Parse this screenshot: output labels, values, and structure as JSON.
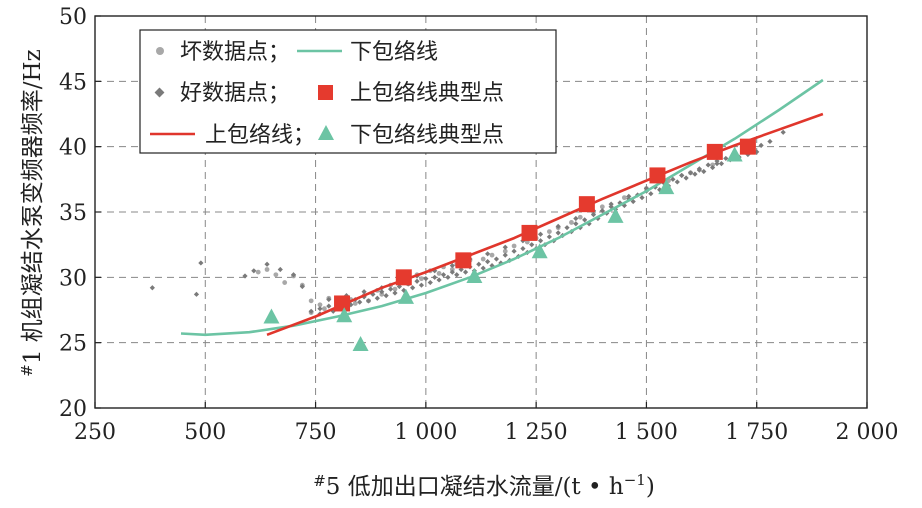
{
  "chart_data": {
    "type": "scatter",
    "xlabel_prefix": "#",
    "xlabel_main": "5 低加出口凝结水流量/(t • h",
    "xlabel_sup": "−1",
    "xlabel_suffix": ")",
    "ylabel_prefix": "#",
    "ylabel_main": "1 机组凝结水泵变频器频率/Hz",
    "xlim": [
      250,
      2000
    ],
    "ylim": [
      20,
      50
    ],
    "xticks": [
      250,
      500,
      750,
      1000,
      1250,
      1500,
      1750,
      2000
    ],
    "xtick_labels": [
      "250",
      "500",
      "750",
      "1 000",
      "1 250",
      "1 500",
      "1 750",
      "2 000"
    ],
    "yticks": [
      20,
      25,
      30,
      35,
      40,
      45,
      50
    ],
    "ytick_labels": [
      "20",
      "25",
      "30",
      "35",
      "40",
      "45",
      "50"
    ],
    "grid": true,
    "legend_position": "top-left",
    "legend": [
      {
        "label": "坏数据点；",
        "marker": "circle",
        "color": "#a8a8a8"
      },
      {
        "label": "下包络线",
        "marker": "line",
        "color": "#6cc4a4"
      },
      {
        "label": "好数据点；",
        "marker": "diamond",
        "color": "#7a7a7a"
      },
      {
        "label": "上包络线典型点",
        "marker": "square",
        "color": "#e53a2e"
      },
      {
        "label": "上包络线；",
        "marker": "line",
        "color": "#e0362c"
      },
      {
        "label": "下包络线典型点",
        "marker": "triangle",
        "color": "#6cc4a4"
      }
    ],
    "series": [
      {
        "name": "上包络线典型点",
        "color": "#e53a2e",
        "x": [
          810,
          950,
          1085,
          1235,
          1365,
          1525,
          1655,
          1730
        ],
        "y": [
          28.0,
          30.0,
          31.3,
          33.4,
          35.6,
          37.8,
          39.6,
          40.0
        ]
      },
      {
        "name": "下包络线典型点",
        "color": "#6cc4a4",
        "x": [
          650,
          815,
          852,
          955,
          1110,
          1258,
          1430,
          1545,
          1700
        ],
        "y": [
          27.0,
          27.1,
          24.9,
          28.5,
          30.1,
          32.0,
          34.7,
          36.9,
          39.4
        ]
      },
      {
        "name": "上包络线",
        "color": "#e0362c",
        "x": [
          640,
          750,
          900,
          1000,
          1100,
          1200,
          1300,
          1400,
          1500,
          1600,
          1700,
          1800,
          1900
        ],
        "y": [
          25.6,
          27.0,
          29.2,
          30.4,
          31.7,
          33.0,
          34.5,
          36.0,
          37.4,
          38.8,
          40.1,
          41.3,
          42.5
        ]
      },
      {
        "name": "下包络线",
        "color": "#6cc4a4",
        "x": [
          445,
          500,
          600,
          700,
          800,
          900,
          1000,
          1100,
          1200,
          1300,
          1400,
          1500,
          1600,
          1700,
          1800,
          1900
        ],
        "y": [
          25.7,
          25.6,
          25.8,
          26.3,
          27.0,
          27.8,
          28.8,
          30.0,
          31.4,
          33.0,
          34.8,
          36.6,
          38.6,
          40.6,
          42.8,
          45.1
        ]
      }
    ],
    "scatter_bad": {
      "name": "坏数据点",
      "color": "#a8a8a8",
      "x": [
        620,
        640,
        660,
        680,
        700,
        720,
        740,
        760,
        780,
        800,
        830,
        860,
        890,
        920,
        950,
        980,
        1010,
        1040,
        1070,
        1100,
        1150,
        1200,
        1250,
        1300,
        1350,
        1400,
        1450,
        1500,
        1550,
        1600,
        1650,
        1700,
        740,
        770,
        800,
        840,
        870,
        900,
        930,
        960,
        990,
        1030,
        1060,
        1090,
        1130,
        1180,
        1230,
        1280,
        1330,
        1380
      ],
      "y": [
        30.4,
        30.6,
        30.2,
        29.6,
        30.1,
        29.4,
        28.2,
        27.9,
        28.4,
        28.0,
        28.3,
        28.6,
        29.0,
        29.4,
        29.8,
        30.2,
        30.5,
        30.8,
        31.0,
        31.3,
        31.7,
        32.4,
        33.0,
        33.8,
        34.6,
        35.4,
        36.1,
        36.8,
        37.4,
        38.0,
        38.6,
        39.2,
        27.3,
        27.6,
        27.8,
        28.0,
        28.2,
        28.7,
        29.1,
        29.5,
        29.9,
        30.3,
        30.6,
        30.9,
        31.4,
        32.0,
        32.7,
        33.5,
        34.2,
        35.0
      ]
    },
    "scatter_good": {
      "name": "好数据点",
      "color": "#7a7a7a",
      "x": [
        380,
        480,
        490,
        590,
        610,
        640,
        670,
        700,
        720,
        740,
        760,
        780,
        800,
        820,
        840,
        860,
        880,
        900,
        920,
        940,
        960,
        980,
        1000,
        1020,
        1040,
        1060,
        1080,
        1100,
        1120,
        1140,
        1160,
        1180,
        1200,
        1220,
        1240,
        1260,
        1280,
        1300,
        1320,
        1340,
        1360,
        1380,
        1400,
        1420,
        1440,
        1460,
        1480,
        1500,
        1520,
        1540,
        1560,
        1580,
        1600,
        1620,
        1640,
        1660,
        1680,
        1700,
        1720,
        1740,
        1760,
        1780,
        1810,
        760,
        790,
        810,
        830,
        850,
        870,
        890,
        910,
        930,
        950,
        970,
        990,
        1010,
        1030,
        1050,
        1070,
        1090,
        1110,
        1130,
        1150,
        1170,
        1190,
        1210,
        1230,
        1250,
        1270,
        1290,
        1310,
        1330,
        1350,
        1370,
        1390,
        1410,
        1430,
        1450,
        1470,
        1490,
        1510,
        1530,
        1550,
        1570,
        1590,
        1610,
        1630,
        1650,
        1670,
        1690,
        1710,
        1730,
        1750,
        780,
        820,
        860,
        900,
        940,
        980,
        1020,
        1060,
        1100,
        1140,
        1180,
        1220,
        1260,
        1300,
        1340,
        1380,
        1420,
        1460,
        1500,
        1540,
        1580,
        1620,
        1660,
        1700
      ],
      "y": [
        29.2,
        28.7,
        31.1,
        30.1,
        30.5,
        31.0,
        30.6,
        30.2,
        29.3,
        27.4,
        27.6,
        27.8,
        28.0,
        28.1,
        28.3,
        28.5,
        28.7,
        28.9,
        29.1,
        29.3,
        29.5,
        29.7,
        29.9,
        30.0,
        30.2,
        30.4,
        30.6,
        30.8,
        31.0,
        31.2,
        31.4,
        31.7,
        32.0,
        32.2,
        32.5,
        32.8,
        33.1,
        33.4,
        33.8,
        34.1,
        34.4,
        34.8,
        35.1,
        35.4,
        35.7,
        36.0,
        36.3,
        36.6,
        36.9,
        37.2,
        37.5,
        37.8,
        38.0,
        38.3,
        38.6,
        38.9,
        39.1,
        39.3,
        39.6,
        39.8,
        40.1,
        40.4,
        41.1,
        27.2,
        27.4,
        27.7,
        27.9,
        28.1,
        28.2,
        28.4,
        28.6,
        28.8,
        29.0,
        29.2,
        29.4,
        29.6,
        29.8,
        30.0,
        30.2,
        30.4,
        30.5,
        30.7,
        30.9,
        31.1,
        31.3,
        31.6,
        31.9,
        32.2,
        32.5,
        32.8,
        33.2,
        33.5,
        33.8,
        34.1,
        34.5,
        34.9,
        35.2,
        35.5,
        35.8,
        36.1,
        36.4,
        36.7,
        37.0,
        37.3,
        37.6,
        37.9,
        38.1,
        38.4,
        38.7,
        39.0,
        39.2,
        39.4,
        39.6,
        28.3,
        28.6,
        28.9,
        29.2,
        29.6,
        30.1,
        30.5,
        30.9,
        31.4,
        31.8,
        32.3,
        32.8,
        33.3,
        33.9,
        34.5,
        35.1,
        35.6,
        36.2,
        36.8,
        37.3,
        37.8,
        38.2,
        38.7,
        39.1
      ]
    }
  }
}
